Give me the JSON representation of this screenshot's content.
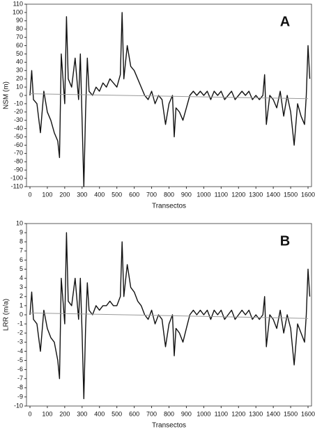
{
  "chart_data": [
    {
      "type": "line",
      "annotation": "A",
      "ylabel": "NSM (m)",
      "xlabel": "Transectos",
      "xlim": [
        -20,
        1620
      ],
      "xticks": [
        0,
        100,
        200,
        300,
        400,
        500,
        600,
        700,
        800,
        900,
        1000,
        1100,
        1200,
        1300,
        1400,
        1500,
        1600
      ],
      "ylim": [
        -110,
        110
      ],
      "yticks": [
        -110,
        -100,
        -90,
        -80,
        -70,
        -60,
        -50,
        -40,
        -30,
        -20,
        -10,
        0,
        10,
        20,
        30,
        40,
        50,
        60,
        70,
        80,
        90,
        100,
        110
      ],
      "color": "#111111",
      "trend_color": "#999999",
      "trend_x": [
        0,
        1600
      ],
      "trend_values": [
        2,
        -4
      ],
      "x": [
        0,
        10,
        20,
        40,
        60,
        80,
        100,
        120,
        140,
        160,
        170,
        180,
        200,
        210,
        220,
        240,
        260,
        280,
        290,
        300,
        310,
        320,
        330,
        340,
        360,
        380,
        400,
        420,
        440,
        460,
        480,
        500,
        520,
        530,
        540,
        560,
        580,
        600,
        620,
        640,
        660,
        680,
        700,
        720,
        740,
        760,
        780,
        800,
        820,
        830,
        840,
        860,
        880,
        900,
        920,
        940,
        960,
        980,
        1000,
        1020,
        1040,
        1060,
        1080,
        1100,
        1120,
        1140,
        1160,
        1180,
        1200,
        1220,
        1240,
        1260,
        1280,
        1300,
        1320,
        1340,
        1350,
        1360,
        1380,
        1400,
        1420,
        1440,
        1460,
        1480,
        1500,
        1520,
        1540,
        1560,
        1580,
        1590,
        1600,
        1610
      ],
      "values": [
        0,
        30,
        -5,
        -10,
        -45,
        5,
        -20,
        -30,
        -45,
        -55,
        -75,
        50,
        -10,
        95,
        20,
        10,
        45,
        -5,
        50,
        -30,
        -110,
        -20,
        45,
        5,
        0,
        10,
        5,
        15,
        10,
        20,
        15,
        10,
        25,
        100,
        20,
        60,
        35,
        30,
        20,
        10,
        0,
        -5,
        5,
        -10,
        0,
        -5,
        -35,
        -10,
        0,
        -50,
        -15,
        -20,
        -30,
        -15,
        0,
        5,
        0,
        5,
        0,
        5,
        -5,
        5,
        0,
        5,
        -5,
        0,
        5,
        -5,
        0,
        5,
        0,
        5,
        -5,
        0,
        -5,
        0,
        25,
        -35,
        0,
        -5,
        -15,
        5,
        -25,
        0,
        -20,
        -60,
        -10,
        -25,
        -35,
        0,
        60,
        20
      ]
    },
    {
      "type": "line",
      "annotation": "B",
      "ylabel": "LRR (m/a)",
      "xlabel": "Transectos",
      "xlim": [
        -20,
        1620
      ],
      "xticks": [
        0,
        100,
        200,
        300,
        400,
        500,
        600,
        700,
        800,
        900,
        1000,
        1100,
        1200,
        1300,
        1400,
        1500,
        1600
      ],
      "ylim": [
        -10,
        10
      ],
      "yticks": [
        -10,
        -9,
        -8,
        -7,
        -6,
        -5,
        -4,
        -3,
        -2,
        -1,
        0,
        1,
        2,
        3,
        4,
        5,
        6,
        7,
        8,
        9,
        10
      ],
      "color": "#111111",
      "trend_color": "#999999",
      "trend_x": [
        0,
        1600
      ],
      "trend_values": [
        0.2,
        -0.4
      ],
      "x": [
        0,
        10,
        20,
        40,
        60,
        80,
        100,
        120,
        140,
        160,
        170,
        180,
        200,
        210,
        220,
        240,
        260,
        280,
        290,
        300,
        310,
        320,
        330,
        340,
        360,
        380,
        400,
        420,
        440,
        460,
        480,
        500,
        520,
        530,
        540,
        560,
        580,
        600,
        620,
        640,
        660,
        680,
        700,
        720,
        740,
        760,
        780,
        800,
        820,
        830,
        840,
        860,
        880,
        900,
        920,
        940,
        960,
        980,
        1000,
        1020,
        1040,
        1060,
        1080,
        1100,
        1120,
        1140,
        1160,
        1180,
        1200,
        1220,
        1240,
        1260,
        1280,
        1300,
        1320,
        1340,
        1350,
        1360,
        1380,
        1400,
        1420,
        1440,
        1460,
        1480,
        1500,
        1520,
        1540,
        1560,
        1580,
        1590,
        1600,
        1610
      ],
      "values": [
        0,
        2.5,
        -0.5,
        -1,
        -4,
        0.5,
        -1.5,
        -2.5,
        -3,
        -5,
        -7,
        4,
        -1,
        9,
        1.5,
        1,
        4,
        -0.5,
        4,
        -2,
        -9.2,
        -1.5,
        3.5,
        0.5,
        0,
        1,
        0.5,
        1,
        1,
        1.5,
        1,
        1,
        2,
        8,
        2,
        5.5,
        3,
        2.5,
        1.5,
        1,
        0,
        -0.5,
        0.5,
        -1,
        0,
        -0.5,
        -3.5,
        -1,
        0,
        -4.5,
        -1.5,
        -2,
        -3,
        -1.5,
        0,
        0.5,
        0,
        0.5,
        0,
        0.5,
        -0.5,
        0.5,
        0,
        0.5,
        -0.5,
        0,
        0.5,
        -0.5,
        0,
        0.5,
        0,
        0.5,
        -0.5,
        0,
        -0.5,
        0,
        2,
        -3.5,
        0,
        -0.5,
        -1.5,
        0.5,
        -2,
        0,
        -1.5,
        -5.5,
        -1,
        -2,
        -3,
        0,
        5,
        2
      ]
    }
  ]
}
